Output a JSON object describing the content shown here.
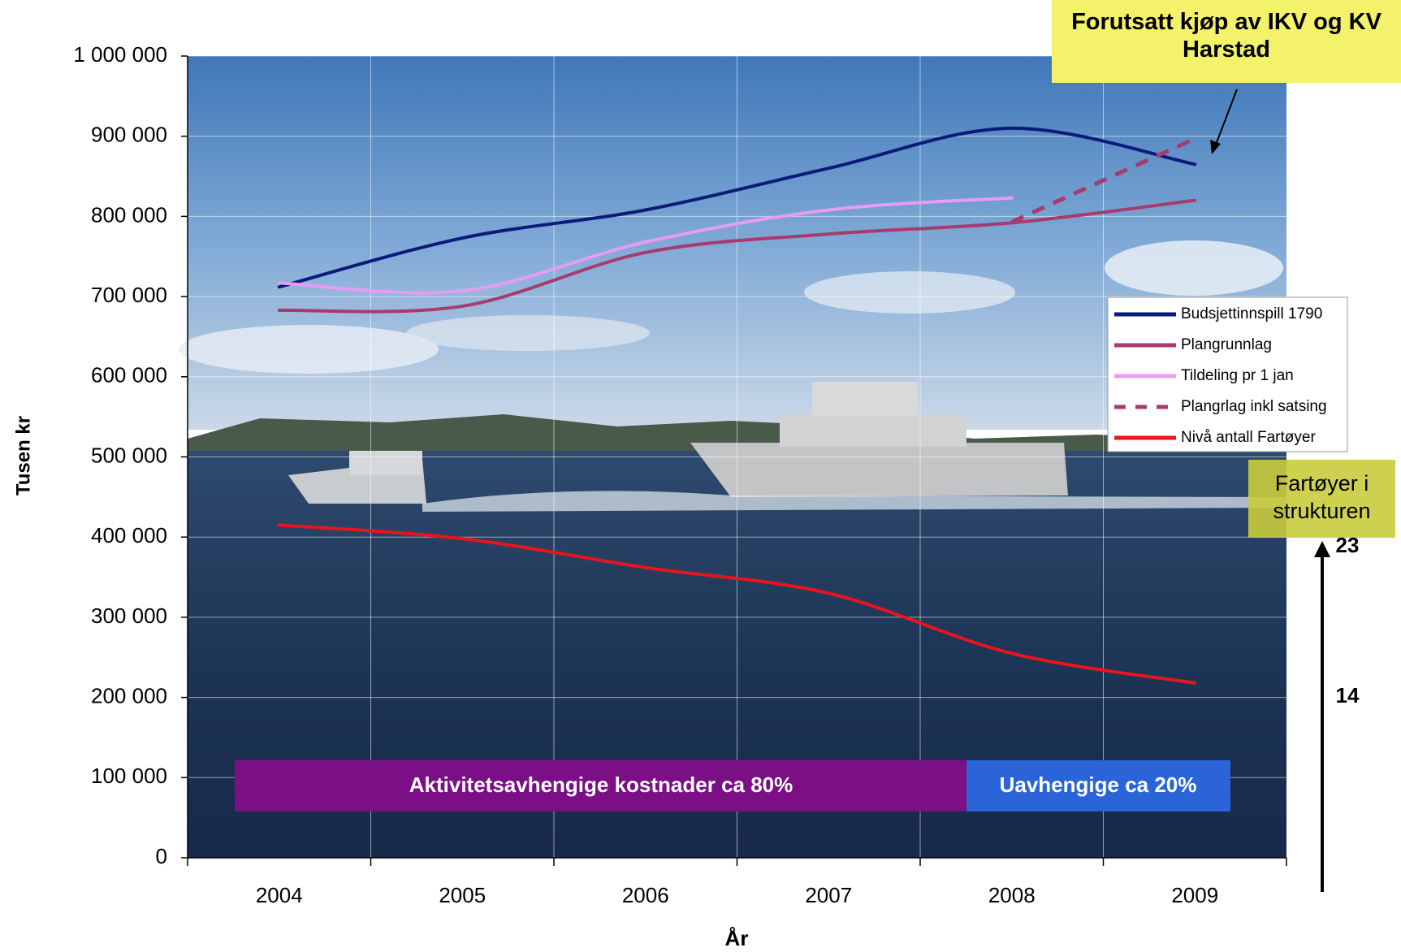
{
  "chart_data": {
    "type": "line",
    "y_label": "Tusen kr",
    "x_label": "År",
    "categories": [
      "2004",
      "2005",
      "2006",
      "2007",
      "2008",
      "2009"
    ],
    "ylim": [
      0,
      1000000
    ],
    "yticks": [
      0,
      {
        "value": 100000,
        "label": "100 000"
      },
      {
        "value": 200000,
        "label": "200 000"
      },
      {
        "value": 300000,
        "label": "300 000"
      },
      {
        "value": 400000,
        "label": "400 000"
      },
      {
        "value": 500000,
        "label": "500 000"
      },
      {
        "value": 600000,
        "label": "600 000"
      },
      {
        "value": 700000,
        "label": "700 000"
      },
      {
        "value": 800000,
        "label": "800 000"
      },
      {
        "value": 900000,
        "label": "900 000"
      },
      {
        "value": 1000000,
        "label": "1 000 000"
      }
    ],
    "grid": true,
    "series": [
      {
        "name": "Budsjettinnspill 1790",
        "color": "#0a1a7a",
        "values": [
          712000,
          773000,
          808000,
          860000,
          910000,
          865000
        ]
      },
      {
        "name": "Plangrunnlag",
        "color": "#a83a6e",
        "values": [
          683000,
          688000,
          755000,
          778000,
          792000,
          820000
        ]
      },
      {
        "name": "Tildeling pr 1 jan",
        "color": "#e79cf2",
        "values": [
          717000,
          707000,
          768000,
          808000,
          823000,
          null
        ]
      },
      {
        "name": "Plangrlag inkl satsing",
        "color": "#a83a6e",
        "dashed": true,
        "values": [
          null,
          null,
          null,
          null,
          793000,
          897000
        ]
      },
      {
        "name": "Nivå antall Fartøyer",
        "color": "#e8141e",
        "values": [
          415000,
          398000,
          362000,
          330000,
          255000,
          218000
        ]
      }
    ],
    "annotations": {
      "purchase_note": "Forutsatt kjøp av IKV og KV Harstad",
      "vessels_title": "Fartøyer i strukturen",
      "vessels_high": "23",
      "vessels_low": "14",
      "activity_band": "Aktivitetsavhengige kostnader ca 80%",
      "independent_band": "Uavhengige ca 20%"
    }
  }
}
